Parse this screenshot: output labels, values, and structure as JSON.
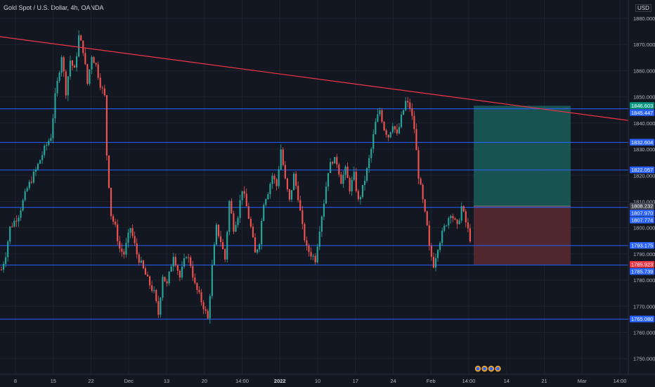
{
  "header": {
    "title": "Gold Spot / U.S. Dollar, 4h, OANDA",
    "currency": "USD"
  },
  "chart_data": {
    "type": "candlestick",
    "y_range": [
      1744,
      1887
    ],
    "y_ticks": [
      1750,
      1760,
      1770,
      1780,
      1790,
      1800,
      1810,
      1820,
      1830,
      1840,
      1850,
      1860,
      1870,
      1880
    ],
    "y_tick_labels": [
      "1750.000",
      "1760.000",
      "1770.000",
      "1780.000",
      "1790.000",
      "1800.000",
      "1810.000",
      "1820.000",
      "1830.000",
      "1840.000",
      "1850.000",
      "1860.000",
      "1870.000",
      "1880.000"
    ],
    "x_tick_labels": [
      "8",
      "15",
      "22",
      "Dec",
      "13",
      "20",
      "14:00",
      "2022",
      "10",
      "17",
      "24",
      "Feb",
      "14:00",
      "14",
      "21",
      "Mar",
      "14:00"
    ],
    "horizontal_levels": [
      1845.447,
      1832.604,
      1822.057,
      1807.774,
      1793.175,
      1785.739,
      1765.08
    ],
    "price_badges": [
      {
        "label": "1846.603",
        "value": 1846.603,
        "color": "#089981"
      },
      {
        "label": "1845.447",
        "value": 1845.447,
        "color": "#2962ff"
      },
      {
        "label": "1832.604",
        "value": 1832.604,
        "color": "#2962ff"
      },
      {
        "label": "1822.057",
        "value": 1822.057,
        "color": "#2962ff"
      },
      {
        "label": "1808.232",
        "value": 1808.232,
        "color": "#434651"
      },
      {
        "label": "1807.970",
        "value": 1807.97,
        "color": "#2962ff"
      },
      {
        "label": "1807.774",
        "value": 1807.774,
        "color": "#2962ff"
      },
      {
        "label": "1793.175",
        "value": 1793.175,
        "color": "#2962ff"
      },
      {
        "label": "1785.923",
        "value": 1785.923,
        "color": "#f23645"
      },
      {
        "label": "1785.739",
        "value": 1785.739,
        "color": "#2962ff"
      },
      {
        "label": "1765.080",
        "value": 1765.08,
        "color": "#2962ff"
      }
    ],
    "trendline": {
      "start": 1873,
      "end": 1841,
      "color": "#f23645"
    },
    "position": {
      "type": "long",
      "entry": 1808.232,
      "target": 1846.603,
      "stop": 1785.923
    },
    "colors": {
      "up": "#26a69a",
      "down": "#ef5350",
      "level": "#2962ff",
      "profit_zone": "#1a5d59",
      "loss_zone": "#5c2a2e"
    },
    "path_anchors": [
      [
        0,
        1784
      ],
      [
        2,
        1790
      ],
      [
        4,
        1800
      ],
      [
        8,
        1805
      ],
      [
        12,
        1815
      ],
      [
        16,
        1822
      ],
      [
        20,
        1830
      ],
      [
        23,
        1835
      ],
      [
        25,
        1850
      ],
      [
        28,
        1866
      ],
      [
        30,
        1852
      ],
      [
        32,
        1864
      ],
      [
        34,
        1860
      ],
      [
        36,
        1873
      ],
      [
        38,
        1868
      ],
      [
        40,
        1855
      ],
      [
        42,
        1866
      ],
      [
        44,
        1862
      ],
      [
        46,
        1855
      ],
      [
        48,
        1850
      ],
      [
        49,
        1828
      ],
      [
        51,
        1805
      ],
      [
        53,
        1800
      ],
      [
        55,
        1792
      ],
      [
        57,
        1790
      ],
      [
        60,
        1800
      ],
      [
        63,
        1790
      ],
      [
        66,
        1784
      ],
      [
        68,
        1780
      ],
      [
        71,
        1775
      ],
      [
        73,
        1767
      ],
      [
        75,
        1782
      ],
      [
        77,
        1778
      ],
      [
        80,
        1790
      ],
      [
        83,
        1781
      ],
      [
        86,
        1790
      ],
      [
        88,
        1786
      ],
      [
        90,
        1778
      ],
      [
        92,
        1774
      ],
      [
        94,
        1770
      ],
      [
        96,
        1765
      ],
      [
        98,
        1785
      ],
      [
        100,
        1800
      ],
      [
        102,
        1795
      ],
      [
        104,
        1788
      ],
      [
        106,
        1810
      ],
      [
        108,
        1800
      ],
      [
        110,
        1805
      ],
      [
        112,
        1815
      ],
      [
        114,
        1808
      ],
      [
        116,
        1800
      ],
      [
        118,
        1790
      ],
      [
        120,
        1795
      ],
      [
        122,
        1810
      ],
      [
        124,
        1814
      ],
      [
        126,
        1820
      ],
      [
        128,
        1816
      ],
      [
        130,
        1830
      ],
      [
        132,
        1818
      ],
      [
        134,
        1810
      ],
      [
        136,
        1820
      ],
      [
        138,
        1812
      ],
      [
        140,
        1800
      ],
      [
        142,
        1792
      ],
      [
        144,
        1790
      ],
      [
        146,
        1788
      ],
      [
        148,
        1800
      ],
      [
        150,
        1810
      ],
      [
        152,
        1822
      ],
      [
        154,
        1826
      ],
      [
        156,
        1825
      ],
      [
        158,
        1818
      ],
      [
        160,
        1822
      ],
      [
        162,
        1815
      ],
      [
        164,
        1820
      ],
      [
        166,
        1810
      ],
      [
        168,
        1815
      ],
      [
        170,
        1822
      ],
      [
        172,
        1830
      ],
      [
        174,
        1840
      ],
      [
        176,
        1845
      ],
      [
        178,
        1838
      ],
      [
        180,
        1835
      ],
      [
        182,
        1840
      ],
      [
        184,
        1835
      ],
      [
        186,
        1842
      ],
      [
        188,
        1848
      ],
      [
        190,
        1846
      ],
      [
        192,
        1838
      ],
      [
        194,
        1820
      ],
      [
        196,
        1810
      ],
      [
        198,
        1800
      ],
      [
        199,
        1792
      ],
      [
        201,
        1786
      ],
      [
        203,
        1793
      ],
      [
        206,
        1800
      ],
      [
        209,
        1806
      ],
      [
        212,
        1800
      ],
      [
        214,
        1808
      ],
      [
        216,
        1802
      ],
      [
        218,
        1796
      ]
    ]
  }
}
